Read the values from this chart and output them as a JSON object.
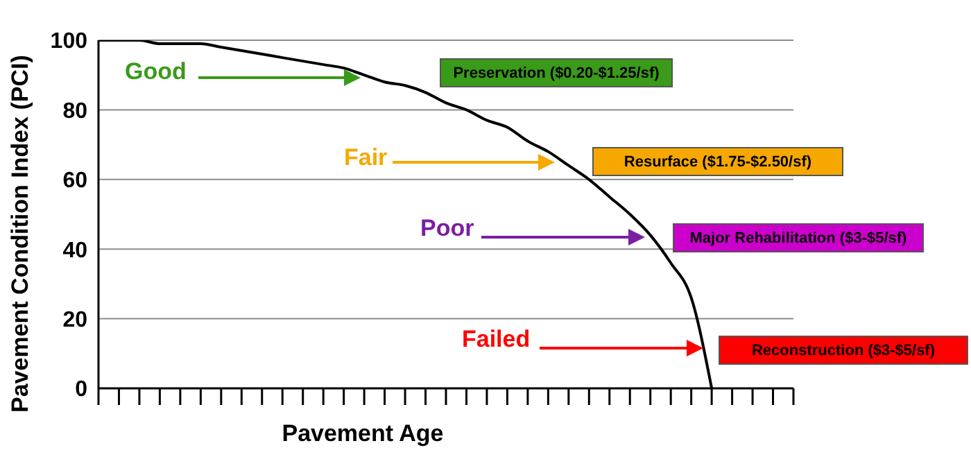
{
  "chart_data": {
    "type": "line",
    "xlabel": "Pavement Age",
    "ylabel": "Pavement Condition Index (PCI)",
    "categories": [
      null,
      null,
      null,
      null,
      null,
      null,
      null,
      null,
      null,
      null,
      null,
      null,
      null,
      null,
      null,
      null,
      null,
      null,
      null,
      null,
      null,
      null,
      null,
      null,
      null,
      null,
      null,
      null,
      null,
      null,
      null,
      null,
      null,
      null,
      null
    ],
    "values": [
      100,
      100,
      100,
      99,
      99,
      99,
      98,
      97,
      96,
      95,
      94,
      93,
      92,
      90,
      88,
      87,
      85,
      82,
      80,
      77,
      75,
      71,
      68,
      64,
      60,
      55,
      50,
      44,
      36,
      26,
      0,
      null,
      null,
      null,
      null
    ],
    "color": "#000000",
    "marker": "none",
    "ylim": [
      0,
      100
    ],
    "yticks": [
      0,
      20,
      40,
      60,
      80,
      100
    ],
    "grid": "y",
    "tick_labels": "y",
    "annotations": [
      "Good",
      "Fair",
      "Poor",
      "Failed",
      "Preservation ($0.20-$1.25/sf)",
      "Resurface ($1.75-$2.50/sf)",
      "Major Rehabilitation ($3-$5/sf)",
      "Reconstruction ($3-$5/sf)"
    ]
  }
}
